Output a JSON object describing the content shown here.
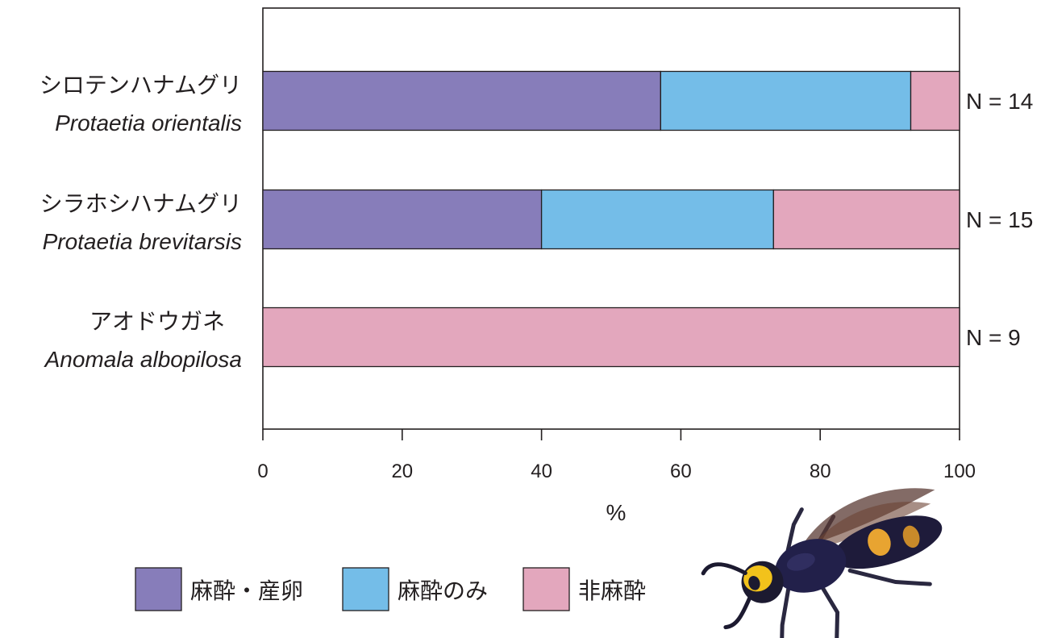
{
  "chart_data": {
    "type": "bar",
    "orientation": "horizontal",
    "stacked": true,
    "xlabel": "%",
    "xlim": [
      0,
      100
    ],
    "xticks": [
      0,
      20,
      40,
      60,
      80,
      100
    ],
    "grid": false,
    "legend_position": "bottom-left",
    "categories": [
      {
        "jp": "シロテンハナムグリ",
        "sci": "Protaetia orientalis",
        "n": "N = 14"
      },
      {
        "jp": "シラホシハナムグリ",
        "sci": "Protaetia brevitarsis",
        "n": "N = 15"
      },
      {
        "jp": "アオドウガネ",
        "sci": "Anomala albopilosa",
        "n": "N = 9"
      }
    ],
    "series": [
      {
        "name": "麻酔・産卵",
        "color": "#877dba",
        "values": [
          57.1,
          40.0,
          0
        ]
      },
      {
        "name": "麻酔のみ",
        "color": "#74bde8",
        "values": [
          35.9,
          33.3,
          0
        ]
      },
      {
        "name": "非麻酔",
        "color": "#e3a7bd",
        "values": [
          7.0,
          26.7,
          100
        ]
      }
    ]
  },
  "photo": {
    "icon": "wasp-photo"
  }
}
